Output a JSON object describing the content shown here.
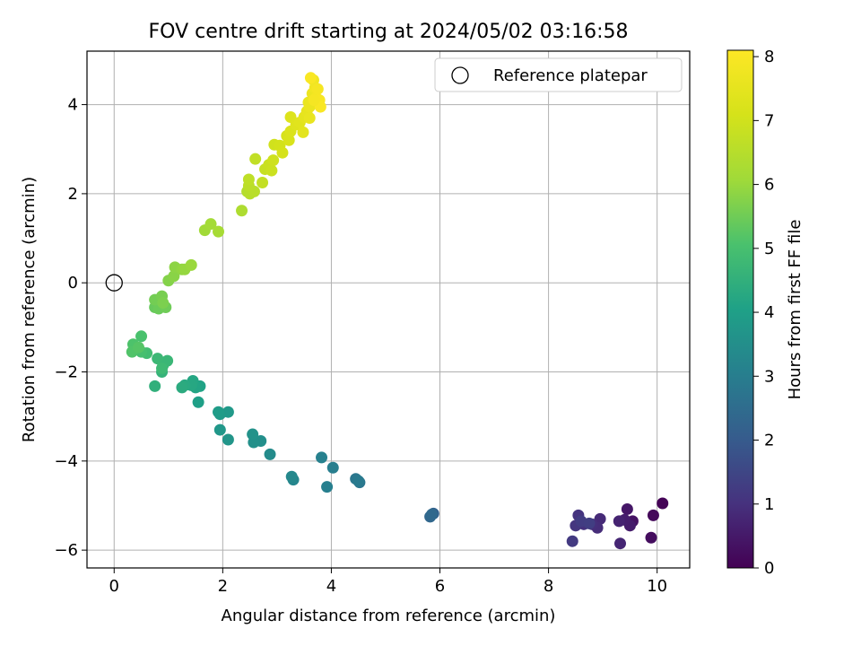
{
  "chart_data": {
    "type": "scatter",
    "title": "FOV centre drift starting at 2024/05/02 03:16:58",
    "xlabel": "Angular distance from reference (arcmin)",
    "ylabel": "Rotation from reference (arcmin)",
    "xlim": [
      -0.5,
      10.6
    ],
    "ylim": [
      -6.4,
      5.2
    ],
    "xticks": [
      0,
      2,
      4,
      6,
      8,
      10
    ],
    "yticks": [
      -6,
      -4,
      -2,
      0,
      2,
      4
    ],
    "grid": true,
    "legend": {
      "placement": "top-right",
      "entries": [
        "Reference platepar"
      ]
    },
    "reference_point": {
      "x": 0,
      "y": 0
    },
    "colorbar": {
      "label": "Hours from first FF file",
      "range": [
        0,
        8.1
      ],
      "ticks": [
        0,
        1,
        2,
        3,
        4,
        5,
        6,
        7,
        8
      ],
      "colormap": "viridis"
    },
    "points": [
      [
        10.1,
        -4.95,
        0.05
      ],
      [
        9.93,
        -5.22,
        0.15
      ],
      [
        9.89,
        -5.72,
        0.25
      ],
      [
        9.55,
        -5.35,
        0.35
      ],
      [
        9.45,
        -5.08,
        0.45
      ],
      [
        9.5,
        -5.45,
        0.55
      ],
      [
        9.4,
        -5.32,
        0.6
      ],
      [
        9.3,
        -5.35,
        0.7
      ],
      [
        9.32,
        -5.85,
        0.75
      ],
      [
        8.95,
        -5.3,
        0.85
      ],
      [
        8.9,
        -5.5,
        0.9
      ],
      [
        8.8,
        -5.42,
        0.95
      ],
      [
        8.65,
        -5.42,
        1.0
      ],
      [
        8.55,
        -5.22,
        1.05
      ],
      [
        8.5,
        -5.45,
        1.1
      ],
      [
        8.44,
        -5.8,
        1.2
      ],
      [
        8.6,
        -5.35,
        1.25
      ],
      [
        8.75,
        -5.4,
        1.3
      ],
      [
        5.88,
        -5.18,
        2.2
      ],
      [
        5.82,
        -5.25,
        2.35
      ],
      [
        5.85,
        -5.2,
        2.4
      ],
      [
        4.52,
        -4.48,
        2.75
      ],
      [
        4.45,
        -4.4,
        2.8
      ],
      [
        4.5,
        -4.45,
        2.9
      ],
      [
        4.03,
        -4.15,
        3.0
      ],
      [
        3.92,
        -4.58,
        3.05
      ],
      [
        3.82,
        -3.92,
        3.1
      ],
      [
        3.3,
        -4.42,
        3.25
      ],
      [
        3.27,
        -4.35,
        3.3
      ],
      [
        2.87,
        -3.85,
        3.4
      ],
      [
        2.7,
        -3.55,
        3.5
      ],
      [
        2.57,
        -3.58,
        3.55
      ],
      [
        2.55,
        -3.4,
        3.6
      ],
      [
        2.1,
        -3.52,
        3.7
      ],
      [
        1.95,
        -3.3,
        3.75
      ],
      [
        2.1,
        -2.9,
        3.8
      ],
      [
        1.95,
        -2.95,
        3.85
      ],
      [
        1.92,
        -2.9,
        3.9
      ],
      [
        1.55,
        -2.68,
        4.0
      ],
      [
        1.58,
        -2.32,
        4.1
      ],
      [
        1.5,
        -2.35,
        4.15
      ],
      [
        1.45,
        -2.2,
        4.2
      ],
      [
        1.42,
        -2.3,
        4.25
      ],
      [
        1.3,
        -2.3,
        4.3
      ],
      [
        1.25,
        -2.35,
        4.35
      ],
      [
        0.75,
        -2.32,
        4.5
      ],
      [
        0.88,
        -2.0,
        4.6
      ],
      [
        0.9,
        -1.85,
        4.65
      ],
      [
        0.98,
        -1.75,
        4.7
      ],
      [
        0.8,
        -1.7,
        4.75
      ],
      [
        0.88,
        -1.92,
        4.8
      ],
      [
        0.6,
        -1.58,
        4.9
      ],
      [
        0.5,
        -1.55,
        5.0
      ],
      [
        0.5,
        -1.2,
        5.05
      ],
      [
        0.35,
        -1.38,
        5.1
      ],
      [
        0.33,
        -1.55,
        5.15
      ],
      [
        0.45,
        -1.45,
        5.2
      ],
      [
        0.75,
        -0.55,
        5.4
      ],
      [
        0.82,
        -0.58,
        5.45
      ],
      [
        0.95,
        -0.55,
        5.5
      ],
      [
        0.75,
        -0.38,
        5.55
      ],
      [
        0.88,
        -0.3,
        5.6
      ],
      [
        0.9,
        -0.45,
        5.65
      ],
      [
        1.0,
        0.05,
        5.75
      ],
      [
        1.1,
        0.15,
        5.8
      ],
      [
        1.12,
        0.35,
        5.85
      ],
      [
        1.25,
        0.3,
        5.9
      ],
      [
        1.3,
        0.3,
        5.95
      ],
      [
        1.42,
        0.4,
        6.0
      ],
      [
        1.67,
        1.18,
        6.1
      ],
      [
        1.78,
        1.32,
        6.15
      ],
      [
        1.92,
        1.15,
        6.2
      ],
      [
        2.35,
        1.62,
        6.35
      ],
      [
        2.45,
        2.05,
        6.45
      ],
      [
        2.5,
        2.0,
        6.5
      ],
      [
        2.58,
        2.05,
        6.55
      ],
      [
        2.48,
        2.18,
        6.6
      ],
      [
        2.48,
        2.32,
        6.65
      ],
      [
        2.6,
        2.78,
        6.7
      ],
      [
        2.73,
        2.25,
        6.75
      ],
      [
        2.78,
        2.55,
        6.8
      ],
      [
        2.85,
        2.65,
        6.85
      ],
      [
        2.9,
        2.52,
        6.9
      ],
      [
        2.93,
        2.75,
        6.95
      ],
      [
        2.95,
        3.1,
        7.0
      ],
      [
        3.05,
        3.08,
        7.05
      ],
      [
        3.1,
        2.92,
        7.1
      ],
      [
        3.18,
        3.3,
        7.15
      ],
      [
        3.22,
        3.2,
        7.2
      ],
      [
        3.25,
        3.4,
        7.25
      ],
      [
        3.25,
        3.72,
        7.3
      ],
      [
        3.35,
        3.55,
        7.35
      ],
      [
        3.42,
        3.6,
        7.4
      ],
      [
        3.48,
        3.38,
        7.45
      ],
      [
        3.5,
        3.72,
        7.5
      ],
      [
        3.55,
        3.85,
        7.55
      ],
      [
        3.58,
        4.05,
        7.6
      ],
      [
        3.6,
        3.95,
        7.65
      ],
      [
        3.65,
        4.25,
        7.7
      ],
      [
        3.67,
        4.55,
        7.75
      ],
      [
        3.7,
        4.38,
        7.8
      ],
      [
        3.72,
        4.15,
        7.85
      ],
      [
        3.75,
        4.35,
        7.9
      ],
      [
        3.78,
        4.1,
        7.95
      ],
      [
        3.8,
        3.95,
        8.0
      ],
      [
        3.62,
        4.6,
        8.0
      ],
      [
        3.68,
        4.1,
        7.9
      ],
      [
        3.6,
        3.7,
        7.6
      ]
    ]
  }
}
